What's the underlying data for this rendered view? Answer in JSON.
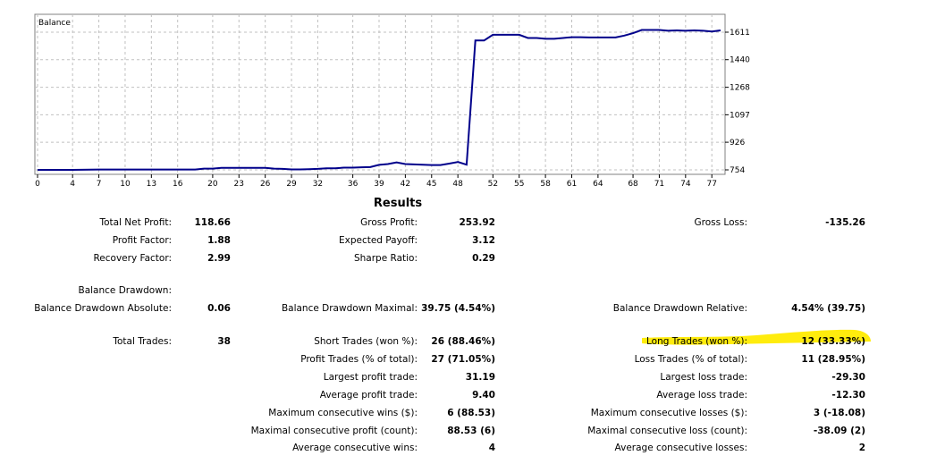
{
  "chart_data": {
    "type": "line",
    "title": "Balance",
    "x_ticks": [
      "0",
      "4",
      "7",
      "10",
      "13",
      "16",
      "20",
      "23",
      "26",
      "29",
      "32",
      "36",
      "39",
      "42",
      "45",
      "48",
      "52",
      "55",
      "58",
      "61",
      "64",
      "68",
      "71",
      "74",
      "77"
    ],
    "y_ticks": [
      "1611",
      "1440",
      "1268",
      "1097",
      "926",
      "754"
    ],
    "ylim": [
      754,
      1611
    ],
    "xlim": [
      0,
      78
    ],
    "grid": true,
    "series": [
      {
        "color": "#00008b",
        "x": [
          0,
          4,
          7,
          10,
          13,
          16,
          18,
          19,
          20,
          21,
          22,
          26,
          27,
          28,
          29,
          30,
          31,
          32,
          33,
          34,
          35,
          36,
          37,
          38,
          39,
          40,
          41,
          42,
          43,
          44,
          45,
          46,
          47,
          48,
          49,
          50,
          51,
          52,
          53,
          55,
          56,
          57,
          58,
          59,
          60,
          61,
          62,
          63,
          64,
          65,
          66,
          67,
          68,
          69,
          70,
          71,
          72,
          73,
          74,
          75,
          76,
          77,
          78
        ],
        "y": [
          754,
          754,
          756,
          756,
          756,
          756,
          756,
          762,
          762,
          766,
          766,
          766,
          762,
          760,
          757,
          757,
          758,
          760,
          764,
          764,
          768,
          768,
          770,
          771,
          785,
          790,
          800,
          790,
          788,
          786,
          784,
          784,
          793,
          803,
          786,
          1560,
          1560,
          1595,
          1595,
          1595,
          1575,
          1575,
          1570,
          1570,
          1575,
          1580,
          1580,
          1578,
          1578,
          1578,
          1578,
          1590,
          1605,
          1625,
          1625,
          1625,
          1620,
          1622,
          1620,
          1622,
          1620,
          1615,
          1622
        ]
      }
    ]
  },
  "results": {
    "title": "Results",
    "col1": [
      {
        "label": "Total Net Profit:",
        "value": "118.66"
      },
      {
        "label": "Profit Factor:",
        "value": "1.88"
      },
      {
        "label": "Recovery Factor:",
        "value": "2.99"
      },
      {
        "label": "Balance Drawdown:",
        "value": ""
      },
      {
        "label": "Balance Drawdown Absolute:",
        "value": "0.06"
      },
      {
        "label": "Total Trades:",
        "value": "38"
      }
    ],
    "col2": [
      {
        "label": "Gross Profit:",
        "value": "253.92"
      },
      {
        "label": "Expected Payoff:",
        "value": "3.12"
      },
      {
        "label": "Sharpe Ratio:",
        "value": "0.29"
      },
      {
        "label": "Balance Drawdown Maximal:",
        "value": "39.75 (4.54%)"
      },
      {
        "label": "Short Trades (won %):",
        "value": "26 (88.46%)"
      },
      {
        "label": "Profit Trades (% of total):",
        "value": "27 (71.05%)"
      },
      {
        "label": "Largest profit trade:",
        "value": "31.19"
      },
      {
        "label": "Average profit trade:",
        "value": "9.40"
      },
      {
        "label": "Maximum consecutive wins ($):",
        "value": "6 (88.53)"
      },
      {
        "label": "Maximal consecutive profit (count):",
        "value": "88.53 (6)"
      },
      {
        "label": "Average consecutive wins:",
        "value": "4"
      }
    ],
    "col3": [
      {
        "label": "Gross Loss:",
        "value": "-135.26"
      },
      {
        "label": "Balance Drawdown Relative:",
        "value": "4.54% (39.75)"
      },
      {
        "label": "Long Trades (won %):",
        "value": "12 (33.33%)"
      },
      {
        "label": "Loss Trades (% of total):",
        "value": "11 (28.95%)"
      },
      {
        "label": "Largest loss trade:",
        "value": "-29.30"
      },
      {
        "label": "Average loss trade:",
        "value": "-12.30"
      },
      {
        "label": "Maximum consecutive losses ($):",
        "value": "3 (-18.08)"
      },
      {
        "label": "Maximal consecutive loss (count):",
        "value": "-38.09 (2)"
      },
      {
        "label": "Average consecutive losses:",
        "value": "2"
      }
    ]
  },
  "colors": {
    "line": "#00008b",
    "highlight": "#ffeb00",
    "grid": "#c0c0c0",
    "frame": "#808080"
  }
}
